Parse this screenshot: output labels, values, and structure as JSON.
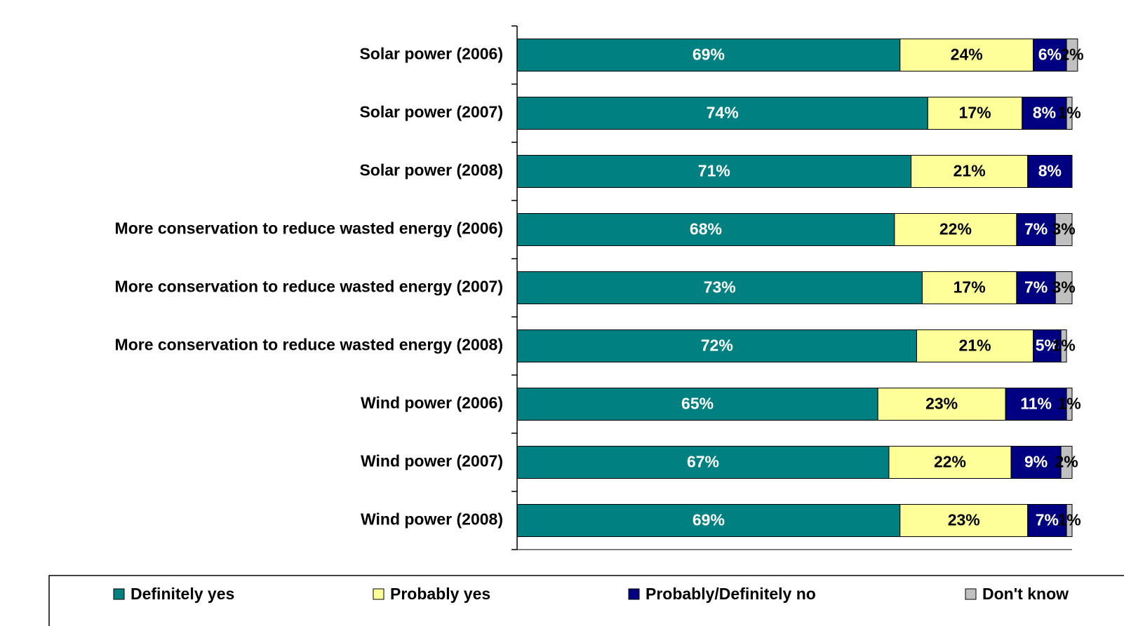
{
  "chart_data": {
    "type": "stacked-bar-horizontal",
    "categories": [
      "Solar power (2006)",
      "Solar power (2007)",
      "Solar power (2008)",
      "More conservation to reduce wasted energy (2006)",
      "More conservation to reduce wasted energy (2007)",
      "More conservation to reduce wasted energy (2008)",
      "Wind power (2006)",
      "Wind power (2007)",
      "Wind power (2008)"
    ],
    "series": [
      {
        "name": "Definitely yes",
        "color": "#008080",
        "label_color": "#ffffff",
        "values": [
          69,
          74,
          71,
          68,
          73,
          72,
          65,
          67,
          69
        ],
        "value_labels": [
          "69%",
          "74%",
          "71%",
          "68%",
          "73%",
          "72%",
          "65%",
          "67%",
          "69%"
        ]
      },
      {
        "name": "Probably yes",
        "color": "#ffff99",
        "label_color": "#000000",
        "values": [
          24,
          17,
          21,
          22,
          17,
          21,
          23,
          22,
          23
        ],
        "value_labels": [
          "24%",
          "17%",
          "21%",
          "22%",
          "17%",
          "21%",
          "23%",
          "22%",
          "23%"
        ]
      },
      {
        "name": "Probably/Definitely no",
        "color": "#000080",
        "label_color": "#ffffff",
        "values": [
          6,
          8,
          8,
          7,
          7,
          5,
          11,
          9,
          7
        ],
        "value_labels": [
          "6%",
          "8%",
          "8%",
          "7%",
          "7%",
          "5%",
          "11%",
          "9%",
          "7%"
        ]
      },
      {
        "name": "Don't know",
        "color": "#c0c0c0",
        "label_color": "#000000",
        "values": [
          2,
          1,
          null,
          3,
          3,
          1,
          1,
          2,
          1
        ],
        "value_labels": [
          "2%",
          "1%",
          null,
          "3%",
          "3%",
          "1%",
          "1%",
          "2%",
          "1%"
        ]
      }
    ],
    "xlim": [
      0,
      100
    ]
  }
}
